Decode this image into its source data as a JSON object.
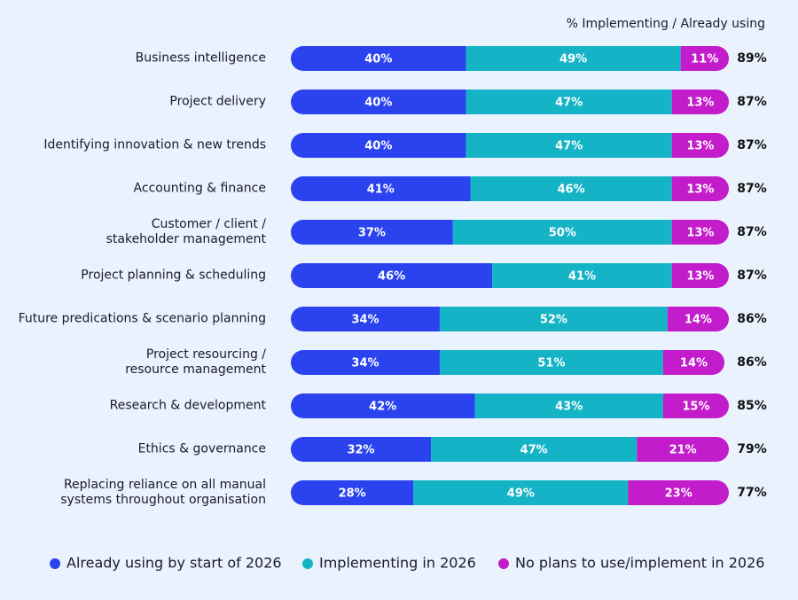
{
  "chart_data": {
    "type": "bar",
    "orientation": "horizontal",
    "stacked": true,
    "categories": [
      "Business intelligence",
      "Project delivery",
      "Identifying innovation & new trends",
      "Accounting & finance",
      "Customer / client /\nstakeholder management",
      "Project planning & scheduling",
      "Future predications & scenario planning",
      "Project resourcing /\nresource management",
      "Research & development",
      "Ethics & governance",
      "Replacing reliance on all manual\nsystems throughout organisation"
    ],
    "series": [
      {
        "name": "Already using by start of 2026",
        "color": "#2a43ef",
        "values": [
          40,
          40,
          40,
          41,
          37,
          46,
          34,
          34,
          42,
          32,
          28
        ],
        "value_labels": [
          "40%",
          "40%",
          "40%",
          "41%",
          "37%",
          "46%",
          "34%",
          "34%",
          "42%",
          "32%",
          "28%"
        ]
      },
      {
        "name": "Implementing in 2026",
        "color": "#14b4c6",
        "values": [
          49,
          47,
          47,
          46,
          50,
          41,
          52,
          51,
          43,
          47,
          49
        ],
        "value_labels": [
          "49%",
          "47%",
          "47%",
          "46%",
          "50%",
          "41%",
          "52%",
          "51%",
          "43%",
          "47%",
          "49%"
        ]
      },
      {
        "name": "No plans to use/implement in 2026",
        "color": "#c21ccb",
        "values": [
          11,
          13,
          13,
          13,
          13,
          13,
          14,
          14,
          15,
          21,
          23
        ],
        "value_labels": [
          "11%",
          "13%",
          "13%",
          "13%",
          "13%",
          "13%",
          "14%",
          "14%",
          "15%",
          "21%",
          "23%"
        ]
      }
    ],
    "totals": {
      "name": "% Implementing / Already using",
      "values": [
        89,
        87,
        87,
        87,
        87,
        87,
        86,
        86,
        85,
        79,
        77
      ],
      "value_labels": [
        "89%",
        "87%",
        "87%",
        "87%",
        "87%",
        "87%",
        "86%",
        "86%",
        "85%",
        "79%",
        "77%"
      ]
    },
    "xlim": [
      0,
      100
    ],
    "legend": "bottom"
  }
}
